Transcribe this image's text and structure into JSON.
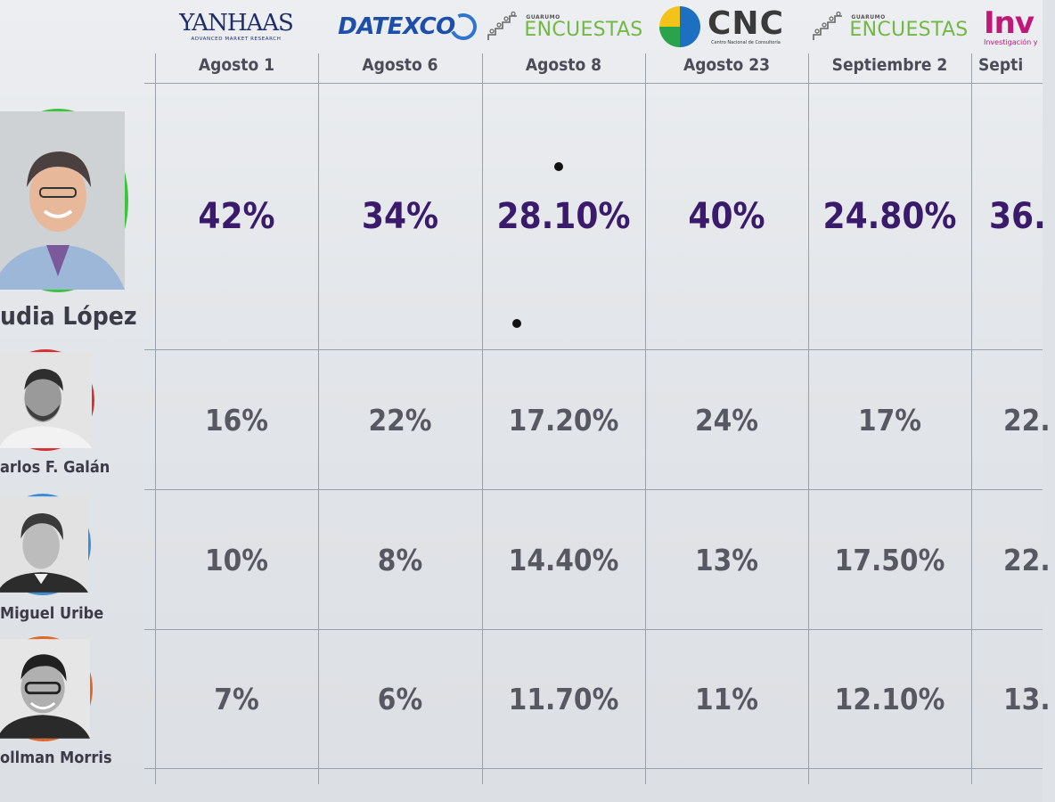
{
  "pollsters": [
    {
      "id": "yanhaas",
      "main": "YANHAAS",
      "sub": "ADVANCED MARKET RESEARCH"
    },
    {
      "id": "datexco",
      "main": "DATEXCO"
    },
    {
      "id": "guarumo",
      "small": "GUARUMO",
      "big": "ENCUESTAS"
    },
    {
      "id": "cnc",
      "big": "CNC",
      "small": "Centro Nacional de Consultoría"
    },
    {
      "id": "guarumo",
      "small": "GUARUMO",
      "big": "ENCUESTAS"
    },
    {
      "id": "invamer",
      "big": "Inv",
      "small": "Investigación y"
    }
  ],
  "chart_data": {
    "type": "table",
    "title": "",
    "columns": [
      "Agosto 1",
      "Agosto 6",
      "Agosto 8",
      "Agosto 23",
      "Septiembre 2",
      "Septi"
    ],
    "rows": [
      {
        "candidate": "udia López",
        "values": [
          "42%",
          "34%",
          "28.10%",
          "40%",
          "24.80%",
          "36."
        ],
        "ring_color": "#3cc43c"
      },
      {
        "candidate": "arlos F. Galán",
        "values": [
          "16%",
          "22%",
          "17.20%",
          "24%",
          "17%",
          "22."
        ],
        "ring_color": "#d83030"
      },
      {
        "candidate": "Miguel Uribe",
        "values": [
          "10%",
          "8%",
          "14.40%",
          "13%",
          "17.50%",
          "22."
        ],
        "ring_color": "#3a8ed8"
      },
      {
        "candidate": "ollman Morris",
        "values": [
          "7%",
          "6%",
          "11.70%",
          "11%",
          "12.10%",
          "13."
        ],
        "ring_color": "#e0662a"
      }
    ]
  },
  "colors": {
    "lead_value": "#3a1a6b",
    "other_value": "#585862",
    "grid": "#9aa0a8"
  }
}
